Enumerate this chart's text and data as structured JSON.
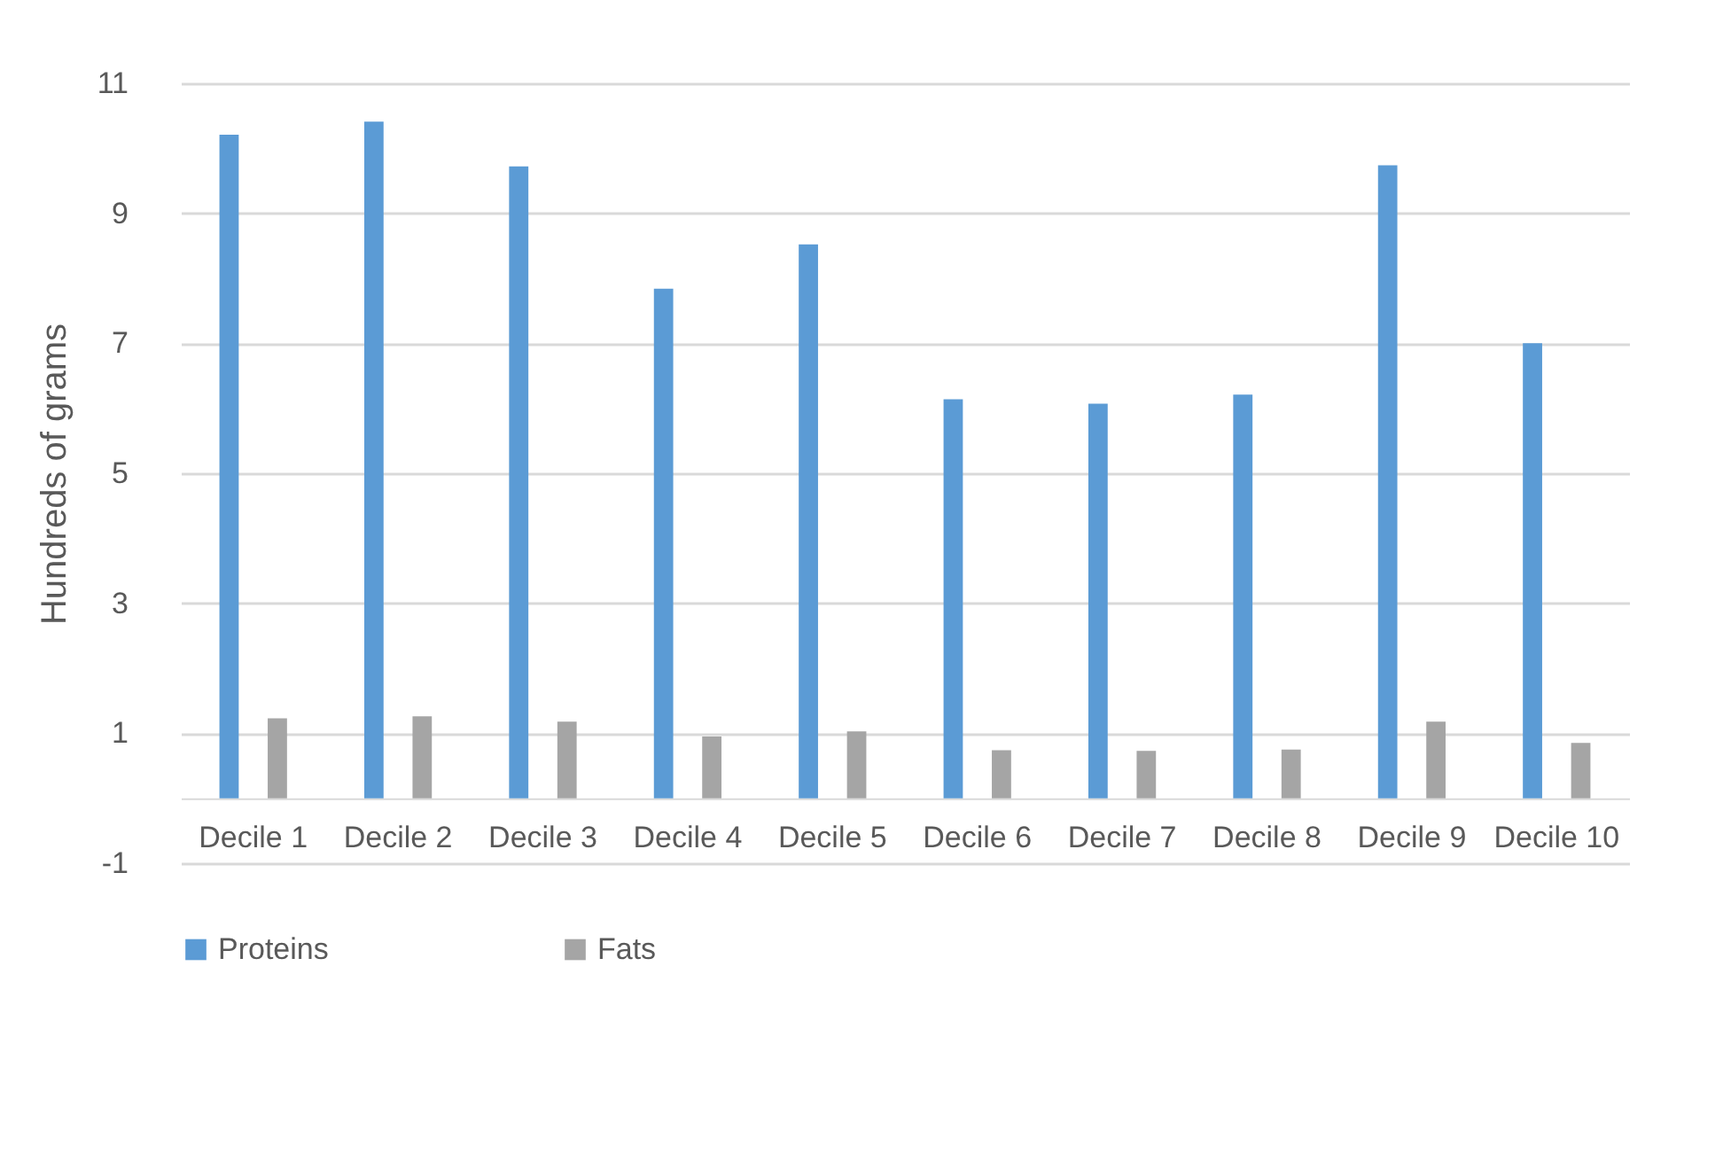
{
  "chart_data": {
    "type": "bar",
    "ylabel": "Hundreds of grams",
    "categories": [
      "Decile 1",
      "Decile 2",
      "Decile 3",
      "Decile 4",
      "Decile 5",
      "Decile 6",
      "Decile 7",
      "Decile 8",
      "Decile 9",
      "Decile 10"
    ],
    "series": [
      {
        "name": "Proteins",
        "color": "#5b9bd5",
        "values": [
          10.21,
          10.41,
          9.72,
          7.84,
          8.52,
          6.14,
          6.07,
          6.21,
          9.74,
          7.0
        ]
      },
      {
        "name": "Fats",
        "color": "#a5a5a5",
        "values": [
          1.23,
          1.26,
          1.18,
          0.95,
          1.03,
          0.74,
          0.73,
          0.75,
          1.18,
          0.85
        ]
      }
    ],
    "ylim": [
      -1,
      11
    ],
    "yticks": [
      -1,
      1,
      3,
      5,
      7,
      9,
      11
    ],
    "grid": "y",
    "legend": "bottom"
  }
}
